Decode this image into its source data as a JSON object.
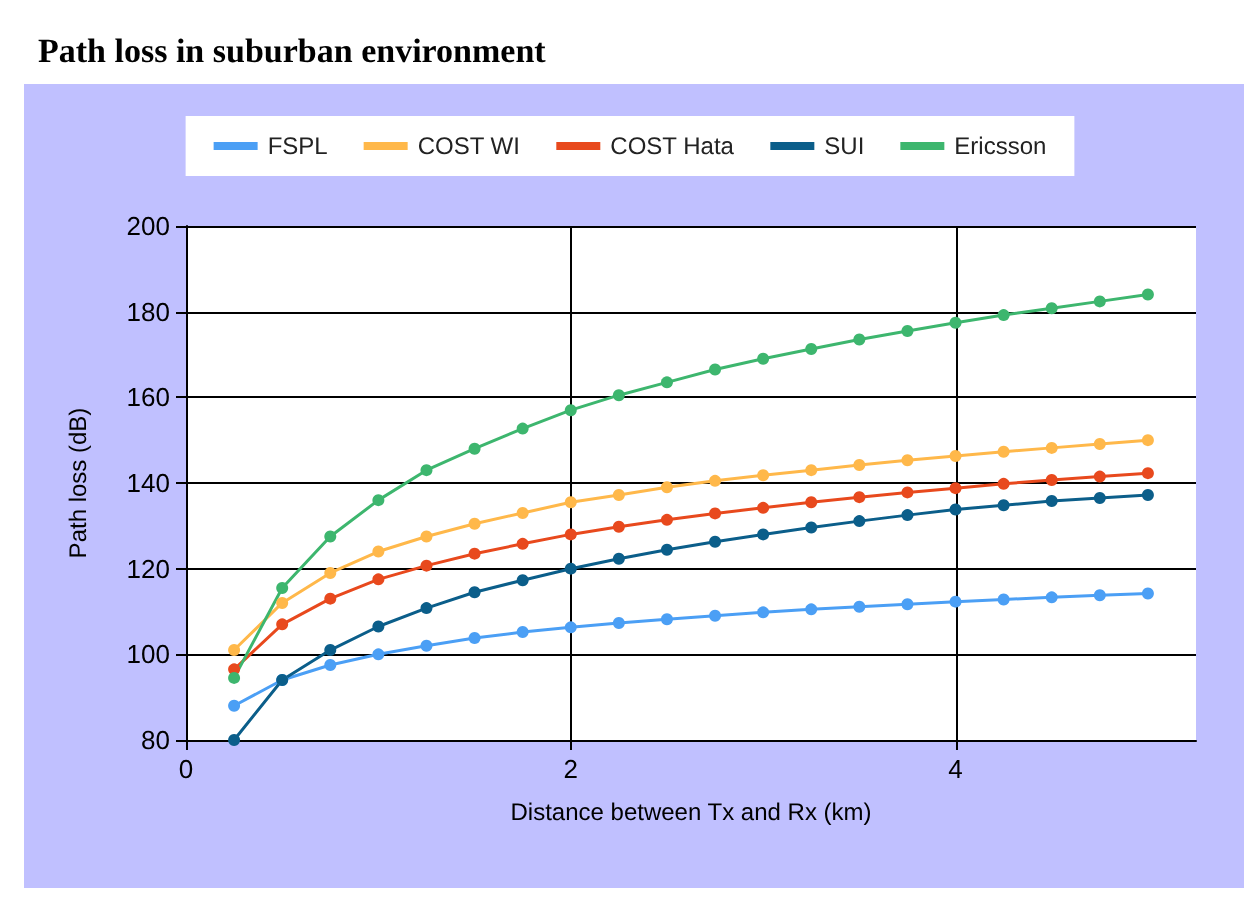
{
  "chart_data": {
    "type": "line",
    "title": "Path loss in suburban environment",
    "xlabel": "Distance between Tx and Rx (km)",
    "ylabel": "Path loss (dB)",
    "x": [
      0.25,
      0.5,
      0.75,
      1,
      1.25,
      1.5,
      1.75,
      2,
      2.25,
      2.5,
      2.75,
      3,
      3.25,
      3.5,
      3.75,
      4,
      4.25,
      4.5,
      4.75,
      5
    ],
    "series": [
      {
        "name": "FSPL",
        "color": "#4b9ff5",
        "values": [
          88,
          94,
          97.5,
          100,
          102,
          103.8,
          105.2,
          106.3,
          107.3,
          108.2,
          109,
          109.8,
          110.5,
          111.1,
          111.7,
          112.3,
          112.8,
          113.3,
          113.8,
          114.2
        ]
      },
      {
        "name": "COST WI",
        "color": "#ffb84a",
        "values": [
          101,
          112,
          119,
          124,
          127.5,
          130.5,
          133,
          135.5,
          137.2,
          139,
          140.5,
          141.8,
          143,
          144.2,
          145.3,
          146.3,
          147.3,
          148.2,
          149.1,
          150
        ]
      },
      {
        "name": "COST Hata",
        "color": "#e8491d",
        "values": [
          96.5,
          107,
          113,
          117.5,
          120.7,
          123.5,
          125.8,
          128,
          129.8,
          131.4,
          132.9,
          134.2,
          135.5,
          136.7,
          137.8,
          138.8,
          139.8,
          140.7,
          141.5,
          142.3
        ]
      },
      {
        "name": "SUI",
        "color": "#0b5e8a",
        "values": [
          80,
          94,
          101,
          106.5,
          110.8,
          114.5,
          117.3,
          120,
          122.3,
          124.4,
          126.3,
          128,
          129.6,
          131.1,
          132.5,
          133.8,
          134.8,
          135.8,
          136.5,
          137.2
        ]
      },
      {
        "name": "Ericsson",
        "color": "#3db66e",
        "values": [
          94.5,
          115.5,
          127.5,
          136,
          143,
          148,
          152.7,
          157,
          160.5,
          163.5,
          166.5,
          169,
          171.3,
          173.5,
          175.5,
          177.4,
          179.2,
          180.8,
          182.4,
          184
        ]
      }
    ],
    "xlim": [
      0,
      5.25
    ],
    "xticks": [
      0,
      2,
      4
    ],
    "ylim": [
      80,
      200
    ],
    "yticks": [
      80,
      100,
      120,
      140,
      160,
      180,
      200
    ],
    "grid": true,
    "legend": "top",
    "marker": "circle",
    "line_style": "solid"
  }
}
